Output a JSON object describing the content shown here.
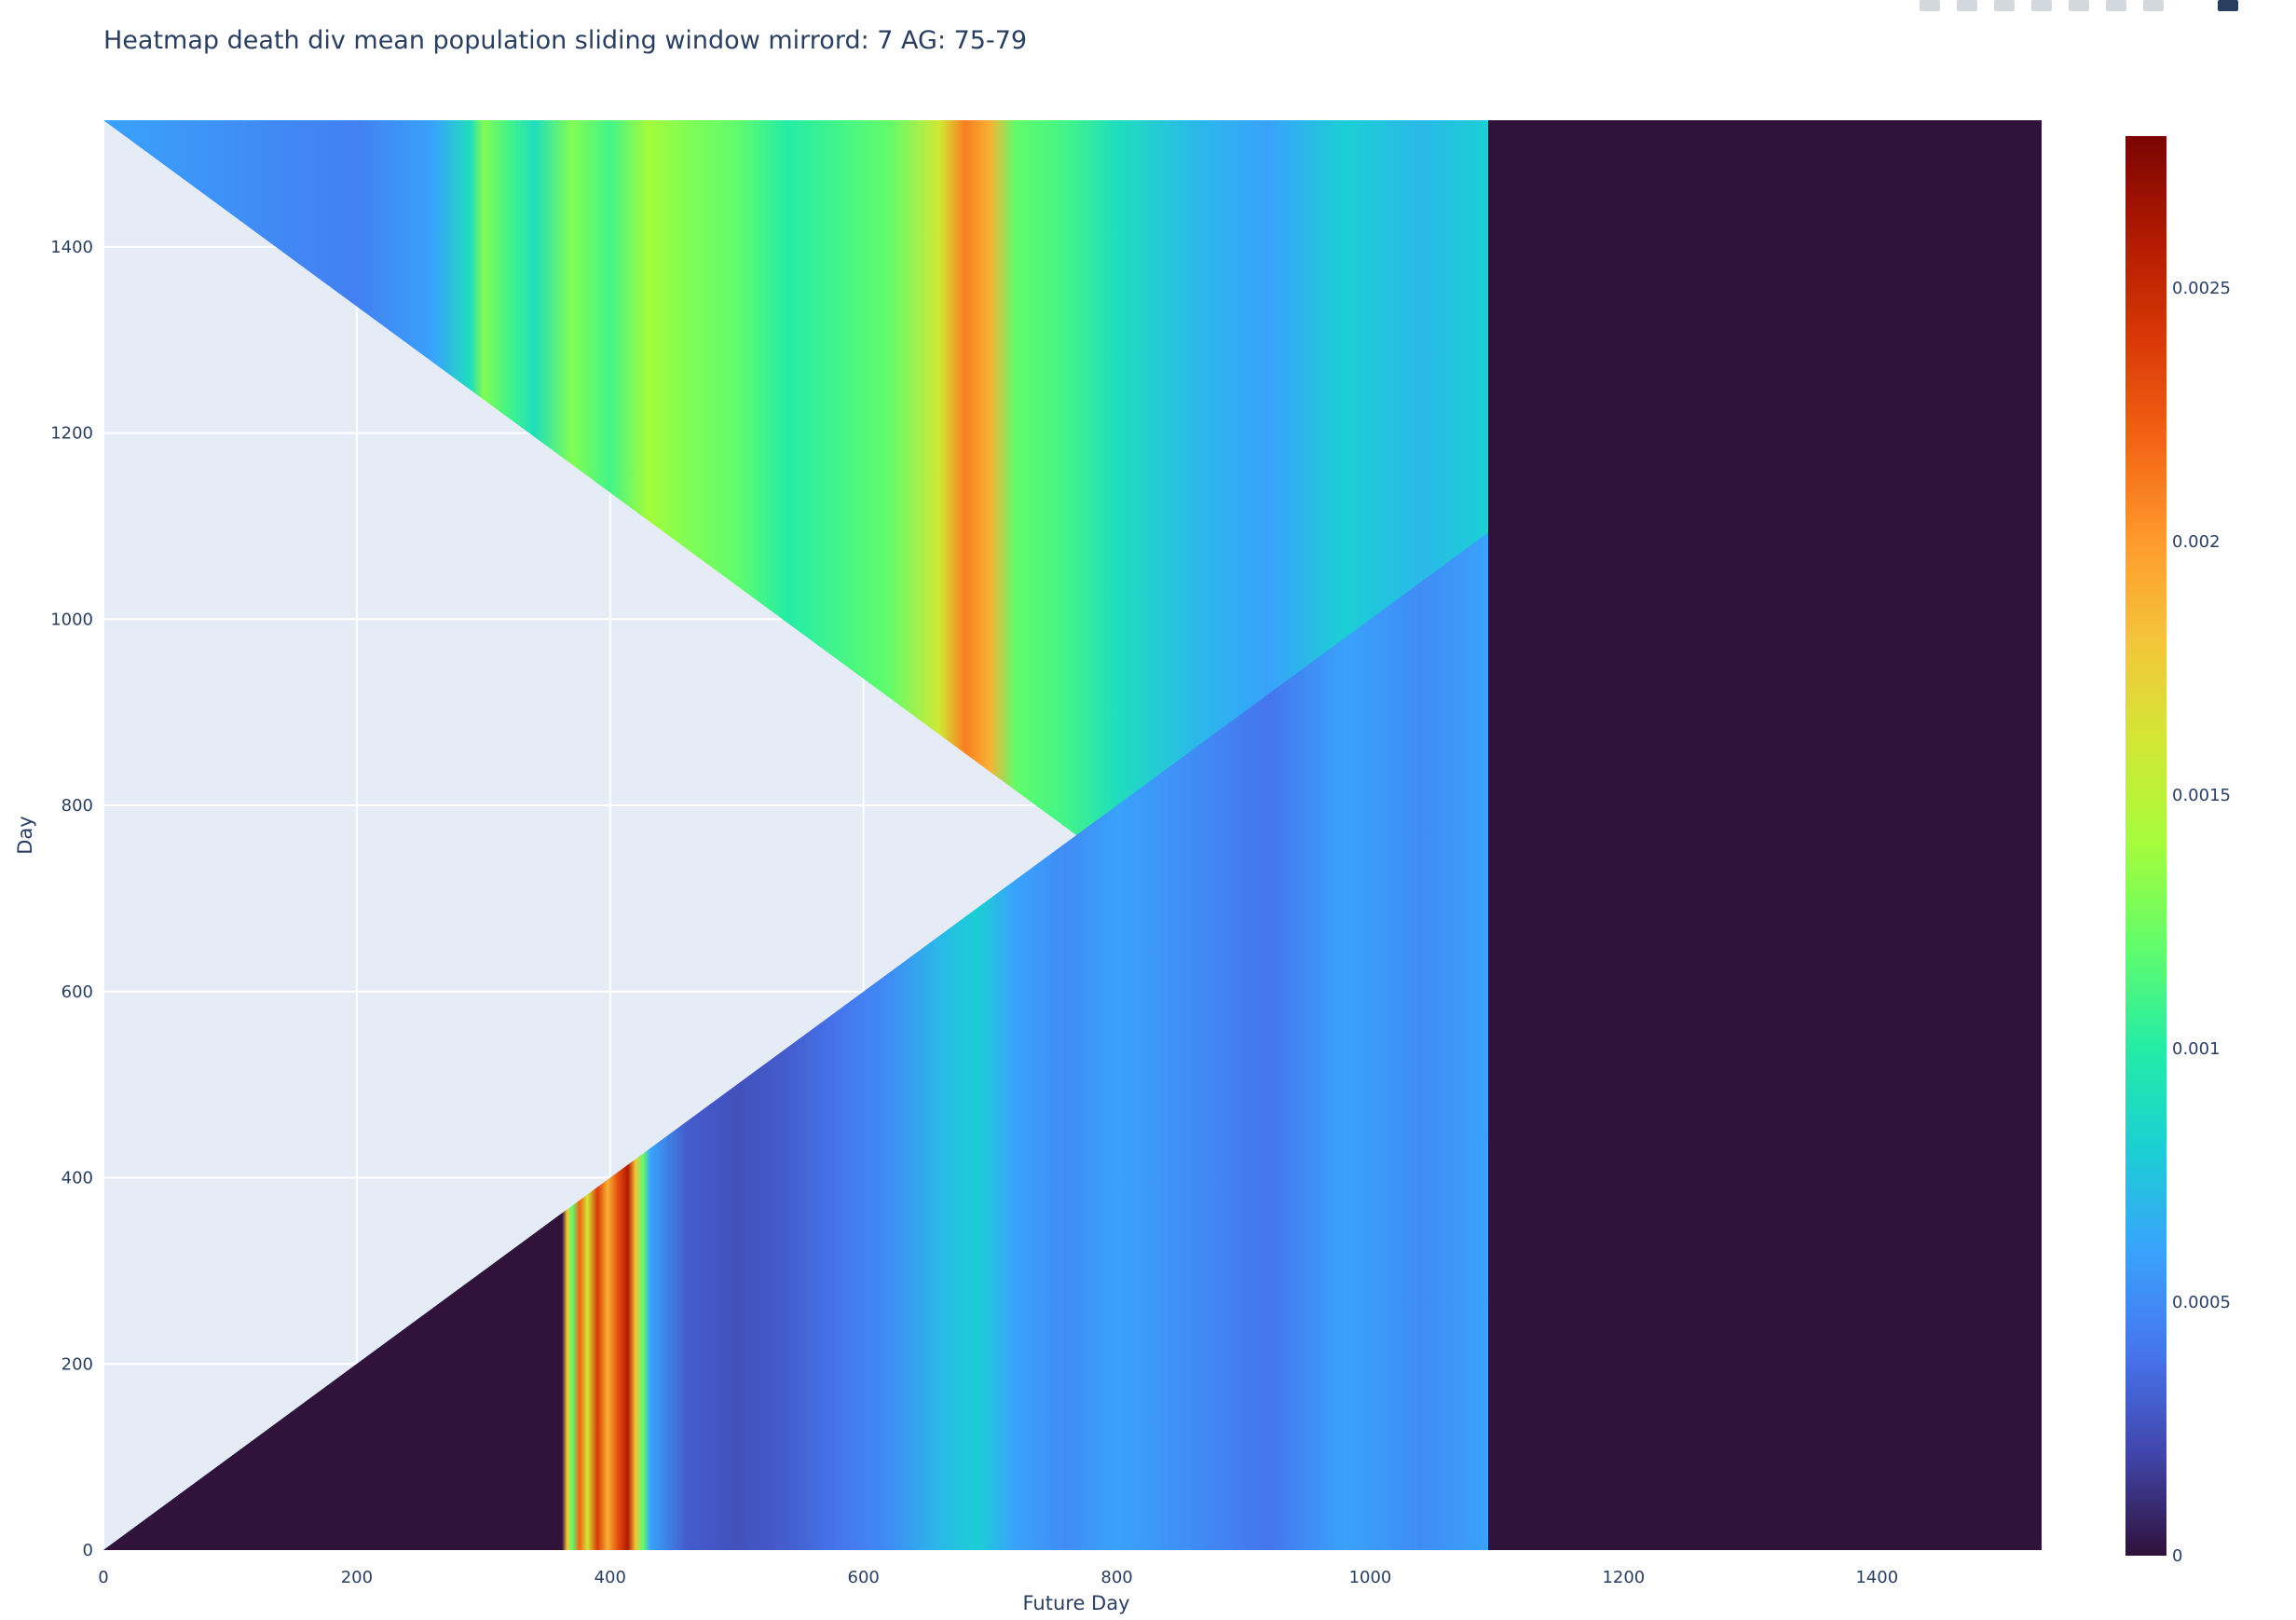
{
  "title": "Heatmap death div mean population sliding window mirrord: 7 AG: 75-79",
  "modebar": {
    "buttons": [
      "camera-icon",
      "zoom-icon",
      "pan-icon",
      "zoom-in-icon",
      "zoom-out-icon",
      "autoscale-icon",
      "reset-axes-icon",
      "plotly-logo-icon"
    ]
  },
  "colors": {
    "plot_bg": "#e5ecf6",
    "grid": "#ffffff",
    "text": "#2a3f5f",
    "colorscale": [
      "#30123b",
      "#4145ab",
      "#4675ed",
      "#39a2fc",
      "#1bcfd4",
      "#24eca6",
      "#61fc6c",
      "#a4fc3b",
      "#d1e834",
      "#f3c63a",
      "#fe9b2d",
      "#f36315",
      "#d93806",
      "#b11901",
      "#7a0402"
    ]
  },
  "chart_data": {
    "type": "heatmap",
    "title": "Heatmap death div mean population sliding window mirrord: 7 AG: 75-79",
    "xlabel": "Future Day",
    "ylabel": "Day",
    "xlim": [
      0,
      1530
    ],
    "ylim": [
      0,
      1536
    ],
    "x_ticks": [
      0,
      200,
      400,
      600,
      800,
      1000,
      1200,
      1400
    ],
    "y_ticks": [
      0,
      200,
      400,
      600,
      800,
      1000,
      1200,
      1400
    ],
    "grid": true,
    "colorbar": {
      "zmin": 0,
      "zmax": 0.0028,
      "ticks": [
        0,
        0.0005,
        0.001,
        0.0015,
        0.002,
        0.0025
      ],
      "tick_labels": [
        "0",
        "0.0005",
        "0.001",
        "0.0015",
        "0.002",
        "0.0025"
      ],
      "colorscale_name": "Turbo"
    },
    "structure": {
      "mirror_apex": [
        768,
        768
      ],
      "data_end_x": 1093,
      "zero_value_after_x": 1093
    },
    "column_profile": [
      {
        "x": 0,
        "z": 0.0004
      },
      {
        "x": 100,
        "z": 0.00045
      },
      {
        "x": 160,
        "z": 0.0005
      },
      {
        "x": 200,
        "z": 0.0004
      },
      {
        "x": 260,
        "z": 0.00055
      },
      {
        "x": 290,
        "z": 0.0008
      },
      {
        "x": 300,
        "z": 0.0011
      },
      {
        "x": 320,
        "z": 0.0013
      },
      {
        "x": 340,
        "z": 0.0009
      },
      {
        "x": 362,
        "z": 0.0
      },
      {
        "x": 366,
        "z": 0.0018
      },
      {
        "x": 370,
        "z": 0.0012
      },
      {
        "x": 376,
        "z": 0.0022
      },
      {
        "x": 382,
        "z": 0.0016
      },
      {
        "x": 390,
        "z": 0.0024
      },
      {
        "x": 398,
        "z": 0.0019
      },
      {
        "x": 406,
        "z": 0.0023
      },
      {
        "x": 414,
        "z": 0.0026
      },
      {
        "x": 420,
        "z": 0.0018
      },
      {
        "x": 426,
        "z": 0.0012
      },
      {
        "x": 432,
        "z": 0.0006
      },
      {
        "x": 460,
        "z": 0.0003
      },
      {
        "x": 500,
        "z": 0.00025
      },
      {
        "x": 540,
        "z": 0.0003
      },
      {
        "x": 580,
        "z": 0.0004
      },
      {
        "x": 620,
        "z": 0.0005
      },
      {
        "x": 660,
        "z": 0.0007
      },
      {
        "x": 690,
        "z": 0.0008
      },
      {
        "x": 720,
        "z": 0.0006
      },
      {
        "x": 760,
        "z": 0.0005
      },
      {
        "x": 800,
        "z": 0.0006
      },
      {
        "x": 860,
        "z": 0.0005
      },
      {
        "x": 920,
        "z": 0.0004
      },
      {
        "x": 980,
        "z": 0.0006
      },
      {
        "x": 1040,
        "z": 0.0005
      },
      {
        "x": 1093,
        "z": 0.0006
      }
    ],
    "upper_column_profile": [
      {
        "x": 0,
        "z": 0.0006
      },
      {
        "x": 120,
        "z": 0.0005
      },
      {
        "x": 200,
        "z": 0.00045
      },
      {
        "x": 260,
        "z": 0.0006
      },
      {
        "x": 290,
        "z": 0.0009
      },
      {
        "x": 300,
        "z": 0.0013
      },
      {
        "x": 320,
        "z": 0.0011
      },
      {
        "x": 340,
        "z": 0.0009
      },
      {
        "x": 370,
        "z": 0.0013
      },
      {
        "x": 400,
        "z": 0.0011
      },
      {
        "x": 430,
        "z": 0.0014
      },
      {
        "x": 460,
        "z": 0.0013
      },
      {
        "x": 500,
        "z": 0.0012
      },
      {
        "x": 540,
        "z": 0.001
      },
      {
        "x": 580,
        "z": 0.0011
      },
      {
        "x": 620,
        "z": 0.0012
      },
      {
        "x": 660,
        "z": 0.0016
      },
      {
        "x": 680,
        "z": 0.0021
      },
      {
        "x": 700,
        "z": 0.0019
      },
      {
        "x": 720,
        "z": 0.0012
      },
      {
        "x": 760,
        "z": 0.0011
      },
      {
        "x": 800,
        "z": 0.0009
      },
      {
        "x": 860,
        "z": 0.0007
      },
      {
        "x": 920,
        "z": 0.0006
      },
      {
        "x": 980,
        "z": 0.0008
      },
      {
        "x": 1040,
        "z": 0.0007
      },
      {
        "x": 1093,
        "z": 0.0008
      }
    ]
  }
}
